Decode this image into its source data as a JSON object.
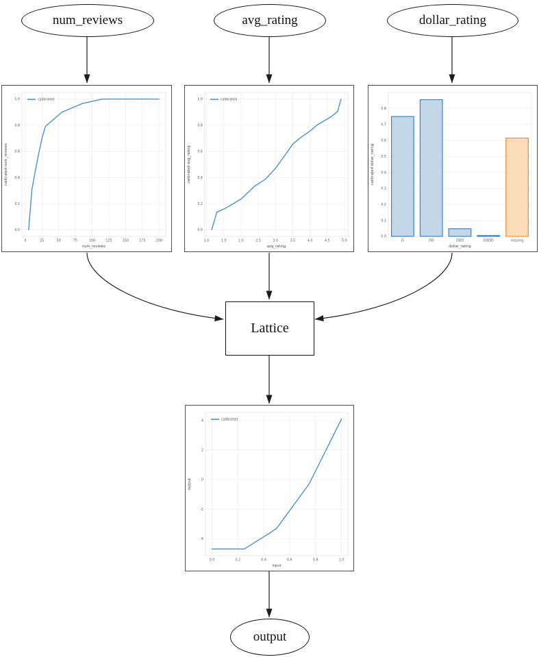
{
  "nodes": {
    "num_reviews": "num_reviews",
    "avg_rating": "avg_rating",
    "dollar_rating": "dollar_rating",
    "lattice": "Lattice",
    "output": "output"
  },
  "colors": {
    "line_blue": "#4a90cf",
    "bar_blue_fill": "#c2d6ea",
    "bar_blue_edge": "#3d82c4",
    "bar_orange_fill": "#fddcbc",
    "bar_orange_edge": "#f28c28",
    "grid": "#efefef",
    "axes_border": "#e4e4e4",
    "edge_black": "#1c1c1c"
  },
  "chart_data": [
    {
      "id": "calibrator-num_reviews",
      "type": "line",
      "legend": "calibrated",
      "xlabel": "num_reviews",
      "ylabel": "calibrated num_reviews",
      "xlim": [
        -5,
        210
      ],
      "ylim": [
        -0.05,
        1.05
      ],
      "xticks": [
        0,
        25,
        50,
        75,
        100,
        125,
        150,
        175,
        200
      ],
      "xtick_labels": [
        "0",
        "25",
        "50",
        "75",
        "100",
        "125",
        "150",
        "175",
        "200"
      ],
      "yticks": [
        0,
        0.2,
        0.4,
        0.6,
        0.8,
        1.0
      ],
      "ytick_labels": [
        "0.0",
        "0.2",
        "0.4",
        "0.6",
        "0.8",
        "1.0"
      ],
      "points": [
        [
          5,
          0.0
        ],
        [
          10,
          0.31
        ],
        [
          15,
          0.45
        ],
        [
          20,
          0.58
        ],
        [
          25,
          0.7
        ],
        [
          30,
          0.79
        ],
        [
          55,
          0.9
        ],
        [
          85,
          0.965
        ],
        [
          115,
          1.0
        ],
        [
          200,
          1.0
        ]
      ]
    },
    {
      "id": "calibrator-avg_rating",
      "type": "line",
      "legend": "calibrated",
      "xlabel": "avg_rating",
      "ylabel": "calibrated avg_rating",
      "xlim": [
        0.95,
        5.1
      ],
      "ylim": [
        -0.05,
        1.05
      ],
      "xticks": [
        1.0,
        1.5,
        2.0,
        2.5,
        3.0,
        3.5,
        4.0,
        4.5,
        5.0
      ],
      "xtick_labels": [
        "1.0",
        "1.5",
        "2.0",
        "2.5",
        "3.0",
        "3.5",
        "4.0",
        "4.5",
        "5.0"
      ],
      "yticks": [
        0,
        0.2,
        0.4,
        0.6,
        0.8,
        1.0
      ],
      "ytick_labels": [
        "0.0",
        "0.2",
        "0.4",
        "0.6",
        "0.8",
        "1.0"
      ],
      "points": [
        [
          1.15,
          0.0
        ],
        [
          1.3,
          0.135
        ],
        [
          1.55,
          0.165
        ],
        [
          2.0,
          0.235
        ],
        [
          2.4,
          0.335
        ],
        [
          2.7,
          0.385
        ],
        [
          3.0,
          0.47
        ],
        [
          3.3,
          0.58
        ],
        [
          3.5,
          0.655
        ],
        [
          3.7,
          0.7
        ],
        [
          4.0,
          0.755
        ],
        [
          4.2,
          0.8
        ],
        [
          4.45,
          0.84
        ],
        [
          4.6,
          0.862
        ],
        [
          4.8,
          0.905
        ],
        [
          4.9,
          1.0
        ]
      ]
    },
    {
      "id": "calibrator-dollar_rating",
      "type": "bar",
      "legend": null,
      "xlabel": "dollar_rating",
      "ylabel": "calibrated dollar_rating",
      "categories": [
        "D",
        "DD",
        "DDD",
        "DDDD",
        "missing"
      ],
      "values": [
        0.75,
        0.855,
        0.048,
        0.005,
        0.615
      ],
      "bar_styles": [
        "blue",
        "blue",
        "blue",
        "blue",
        "orange"
      ],
      "ylim": [
        0,
        0.9
      ],
      "yticks": [
        0,
        0.1,
        0.2,
        0.3,
        0.4,
        0.5,
        0.6,
        0.7,
        0.8
      ],
      "ytick_labels": [
        "0.0",
        "0.1",
        "0.2",
        "0.3",
        "0.4",
        "0.5",
        "0.6",
        "0.7",
        "0.8"
      ]
    },
    {
      "id": "output-calibration",
      "type": "line",
      "legend": "calibrated",
      "xlabel": "input",
      "ylabel": "output",
      "xlim": [
        -0.05,
        1.05
      ],
      "ylim": [
        -5.15,
        4.55
      ],
      "xticks": [
        0,
        0.2,
        0.4,
        0.6,
        0.8,
        1.0
      ],
      "xtick_labels": [
        "0.0",
        "0.2",
        "0.4",
        "0.6",
        "0.8",
        "1.0"
      ],
      "yticks": [
        -4,
        -2,
        0,
        2,
        4
      ],
      "ytick_labels": [
        "-4",
        "-2",
        "0",
        "2",
        "4"
      ],
      "points": [
        [
          0.0,
          -4.7
        ],
        [
          0.25,
          -4.7
        ],
        [
          0.45,
          -3.6
        ],
        [
          0.5,
          -3.3
        ],
        [
          0.75,
          -0.3
        ],
        [
          1.0,
          4.1
        ]
      ]
    }
  ]
}
